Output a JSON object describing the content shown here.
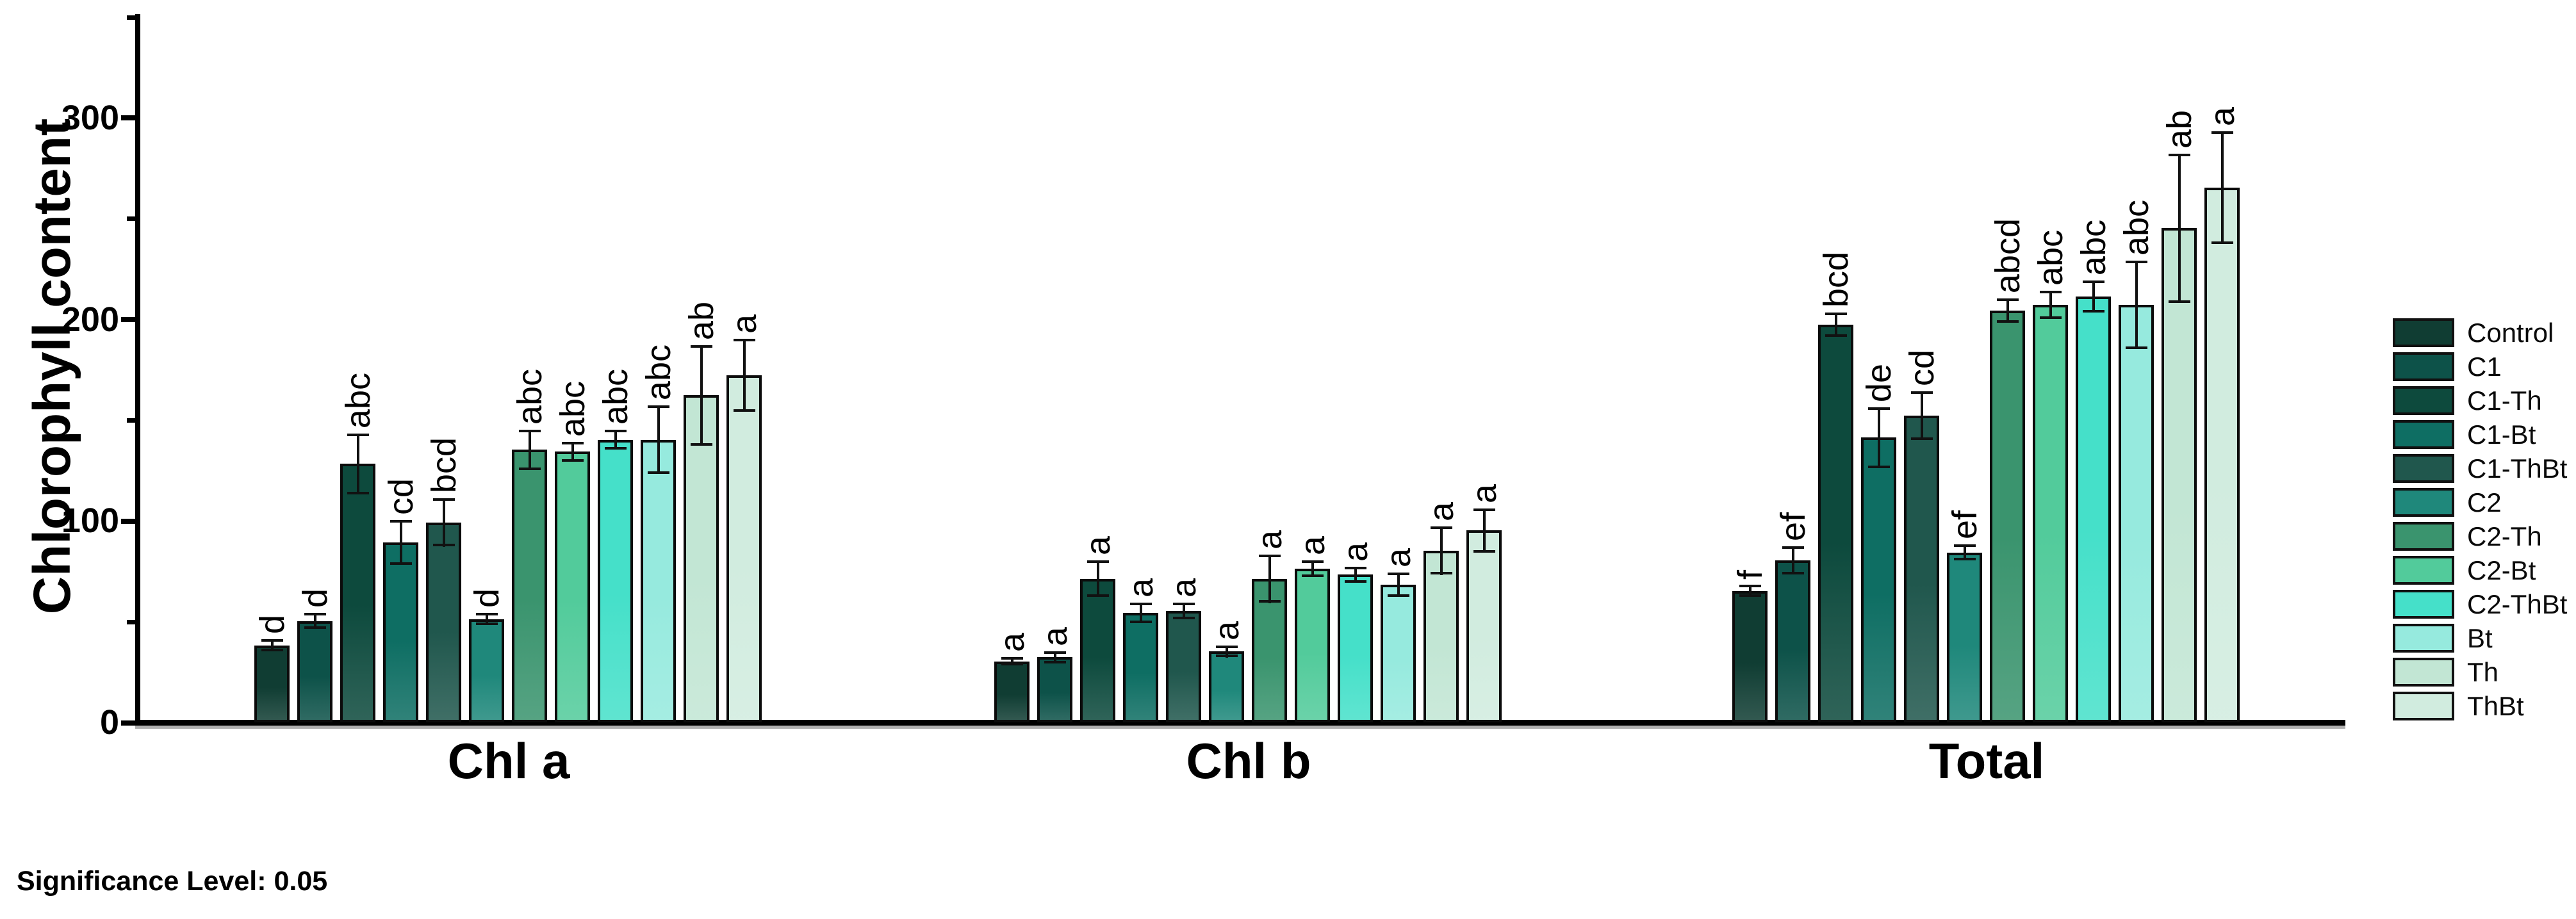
{
  "significance_note": "Significance Level: 0.05",
  "chart_data": {
    "type": "bar",
    "title": "",
    "ylabel": "Chlorophyll content",
    "xlabel": "",
    "ylim": [
      0,
      350
    ],
    "yticks_major": [
      0,
      100,
      200,
      300
    ],
    "yticks_minor": [
      50,
      150,
      250,
      350
    ],
    "grid": false,
    "legend_position": "right-outside",
    "categories": [
      "Chl a",
      "Chl b",
      "Total"
    ],
    "series": [
      {
        "name": "Control",
        "color": "#103d33",
        "values": [
          37,
          29,
          64
        ],
        "errors": [
          3,
          2,
          3
        ],
        "letters": [
          "d",
          "a",
          "f"
        ]
      },
      {
        "name": "C1",
        "color": "#0d5249",
        "values": [
          49,
          31,
          79
        ],
        "errors": [
          4,
          3,
          7
        ],
        "letters": [
          "d",
          "a",
          "ef"
        ]
      },
      {
        "name": "C1-Th",
        "color": "#0d4a3d",
        "values": [
          127,
          70,
          196
        ],
        "errors": [
          15,
          9,
          6
        ],
        "letters": [
          "abc",
          "a",
          "bcd"
        ]
      },
      {
        "name": "C1-Bt",
        "color": "#0e6e63",
        "values": [
          88,
          53,
          140
        ],
        "errors": [
          11,
          5,
          15
        ],
        "letters": [
          "cd",
          "a",
          "de"
        ]
      },
      {
        "name": "C1-ThBt",
        "color": "#20574d",
        "values": [
          98,
          54,
          151
        ],
        "errors": [
          12,
          4,
          12
        ],
        "letters": [
          "bcd",
          "a",
          "cd"
        ]
      },
      {
        "name": "C2",
        "color": "#1f887b",
        "values": [
          50,
          34,
          83
        ],
        "errors": [
          3,
          3,
          4
        ],
        "letters": [
          "d",
          "a",
          "ef"
        ]
      },
      {
        "name": "C2-Th",
        "color": "#3a946e",
        "values": [
          134,
          70,
          203
        ],
        "errors": [
          10,
          12,
          6
        ],
        "letters": [
          "abc",
          "a",
          "abcd"
        ]
      },
      {
        "name": "C2-Bt",
        "color": "#52cb9b",
        "values": [
          133,
          75,
          206
        ],
        "errors": [
          5,
          4,
          7
        ],
        "letters": [
          "abc",
          "a",
          "abc"
        ]
      },
      {
        "name": "C2-ThBt",
        "color": "#45e0c9",
        "values": [
          139,
          72,
          210
        ],
        "errors": [
          5,
          4,
          8
        ],
        "letters": [
          "abc",
          "a",
          "abc"
        ]
      },
      {
        "name": "Bt",
        "color": "#96eade",
        "values": [
          139,
          67,
          206
        ],
        "errors": [
          17,
          6,
          22
        ],
        "letters": [
          "abc",
          "a",
          "abc"
        ]
      },
      {
        "name": "Th",
        "color": "#c2e6d4",
        "values": [
          161,
          84,
          244
        ],
        "errors": [
          25,
          12,
          37
        ],
        "letters": [
          "ab",
          "a",
          "ab"
        ]
      },
      {
        "name": "ThBt",
        "color": "#d1ecdf",
        "values": [
          171,
          94,
          264
        ],
        "errors": [
          18,
          11,
          28
        ],
        "letters": [
          "a",
          "a",
          "a"
        ]
      }
    ]
  }
}
